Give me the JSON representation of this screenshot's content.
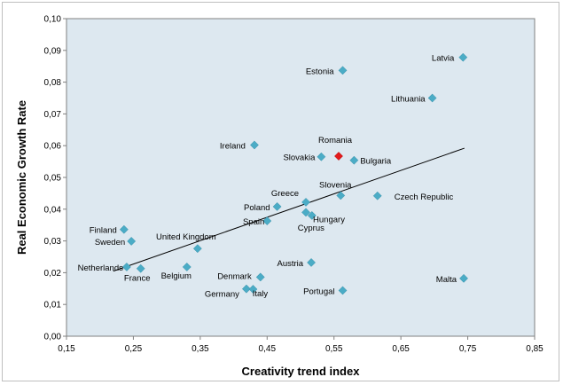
{
  "chart_data": {
    "type": "scatter",
    "title": "",
    "xlabel": "Creativity trend index",
    "ylabel": "Real Economic Growth Rate",
    "xlim": [
      0.15,
      0.85
    ],
    "ylim": [
      0.0,
      0.1
    ],
    "x_ticks": [
      "0,15",
      "0,25",
      "0,35",
      "0,45",
      "0,55",
      "0,65",
      "0,75",
      "0,85"
    ],
    "y_ticks": [
      "0,00",
      "0,01",
      "0,02",
      "0,03",
      "0,04",
      "0,05",
      "0,06",
      "0,07",
      "0,08",
      "0,09",
      "0,10"
    ],
    "grid": false,
    "legend": "none",
    "plot_background": "#dde8f0",
    "marker_color": "#4bacc6",
    "highlight_color": "#e31a1c",
    "trendline": {
      "type": "linear",
      "x": [
        0.22,
        0.745
      ],
      "y": [
        0.0205,
        0.0592
      ]
    },
    "points": [
      {
        "name": "Latvia",
        "x": 0.743,
        "y": 0.0878
      },
      {
        "name": "Estonia",
        "x": 0.563,
        "y": 0.0837
      },
      {
        "name": "Lithuania",
        "x": 0.697,
        "y": 0.075
      },
      {
        "name": "Ireland",
        "x": 0.431,
        "y": 0.0602
      },
      {
        "name": "Romania",
        "x": 0.557,
        "y": 0.0567,
        "highlight": true
      },
      {
        "name": "Slovakia",
        "x": 0.531,
        "y": 0.0565
      },
      {
        "name": "Bulgaria",
        "x": 0.58,
        "y": 0.0554
      },
      {
        "name": "Slovenia",
        "x": 0.56,
        "y": 0.0443
      },
      {
        "name": "Czech Republic",
        "x": 0.615,
        "y": 0.0442
      },
      {
        "name": "Greece",
        "x": 0.508,
        "y": 0.0422
      },
      {
        "name": "Poland",
        "x": 0.465,
        "y": 0.0408
      },
      {
        "name": "Hungary",
        "x": 0.508,
        "y": 0.039
      },
      {
        "name": "Cyprus",
        "x": 0.517,
        "y": 0.038
      },
      {
        "name": "Spain",
        "x": 0.45,
        "y": 0.0363
      },
      {
        "name": "Finland",
        "x": 0.236,
        "y": 0.0336
      },
      {
        "name": "Sweden",
        "x": 0.247,
        "y": 0.0299
      },
      {
        "name": "United Kingdom",
        "x": 0.346,
        "y": 0.0276
      },
      {
        "name": "Netherlands",
        "x": 0.24,
        "y": 0.0218
      },
      {
        "name": "France",
        "x": 0.261,
        "y": 0.0213
      },
      {
        "name": "Belgium",
        "x": 0.33,
        "y": 0.0218
      },
      {
        "name": "Austria",
        "x": 0.516,
        "y": 0.0232
      },
      {
        "name": "Denmark",
        "x": 0.44,
        "y": 0.0186
      },
      {
        "name": "Malta",
        "x": 0.744,
        "y": 0.0182
      },
      {
        "name": "Germany",
        "x": 0.419,
        "y": 0.0149
      },
      {
        "name": "Italy",
        "x": 0.429,
        "y": 0.0148
      },
      {
        "name": "Portugal",
        "x": 0.563,
        "y": 0.0144
      }
    ]
  }
}
